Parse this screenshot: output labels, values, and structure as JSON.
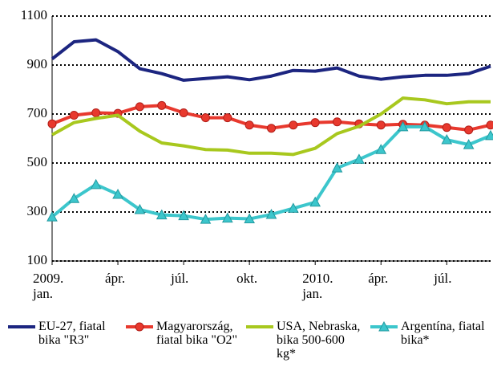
{
  "chart_data": {
    "type": "line",
    "categories": [
      "2009.\njan.",
      null,
      null,
      "ápr.",
      null,
      null,
      "júl.",
      null,
      null,
      "okt.",
      null,
      null,
      "2010.\njan.",
      null,
      null,
      "ápr.",
      null,
      null,
      "júl.",
      null,
      null
    ],
    "series": [
      {
        "name": "EU-27, fiatal bika \"R3\"",
        "color": "#1c2580",
        "marker": "none",
        "values": [
          925,
          995,
          1003,
          955,
          885,
          865,
          838,
          845,
          852,
          840,
          855,
          878,
          875,
          888,
          855,
          842,
          852,
          858,
          858,
          865,
          895
        ]
      },
      {
        "name": "Magyarország, fiatal bika \"O2\"",
        "color": "#e8392e",
        "marker": "circle",
        "values": [
          660,
          695,
          705,
          703,
          730,
          735,
          705,
          685,
          685,
          655,
          642,
          655,
          665,
          668,
          660,
          655,
          658,
          655,
          645,
          635,
          655
        ]
      },
      {
        "name": "USA, Nebraska, bika 500-600 kg*",
        "color": "#a8c81e",
        "marker": "none",
        "values": [
          615,
          665,
          682,
          695,
          630,
          582,
          570,
          555,
          553,
          540,
          540,
          535,
          560,
          620,
          650,
          700,
          765,
          758,
          742,
          750,
          750
        ]
      },
      {
        "name": "Argentína, fiatal bika*",
        "color": "#3cc6cc",
        "marker": "triangle",
        "values": [
          280,
          355,
          412,
          372,
          310,
          288,
          285,
          270,
          275,
          272,
          290,
          315,
          340,
          480,
          515,
          555,
          648,
          648,
          595,
          575,
          612
        ]
      }
    ],
    "ylim": [
      100,
      1100
    ],
    "yticks": [
      100,
      300,
      500,
      700,
      900,
      1100
    ],
    "grid": true
  }
}
